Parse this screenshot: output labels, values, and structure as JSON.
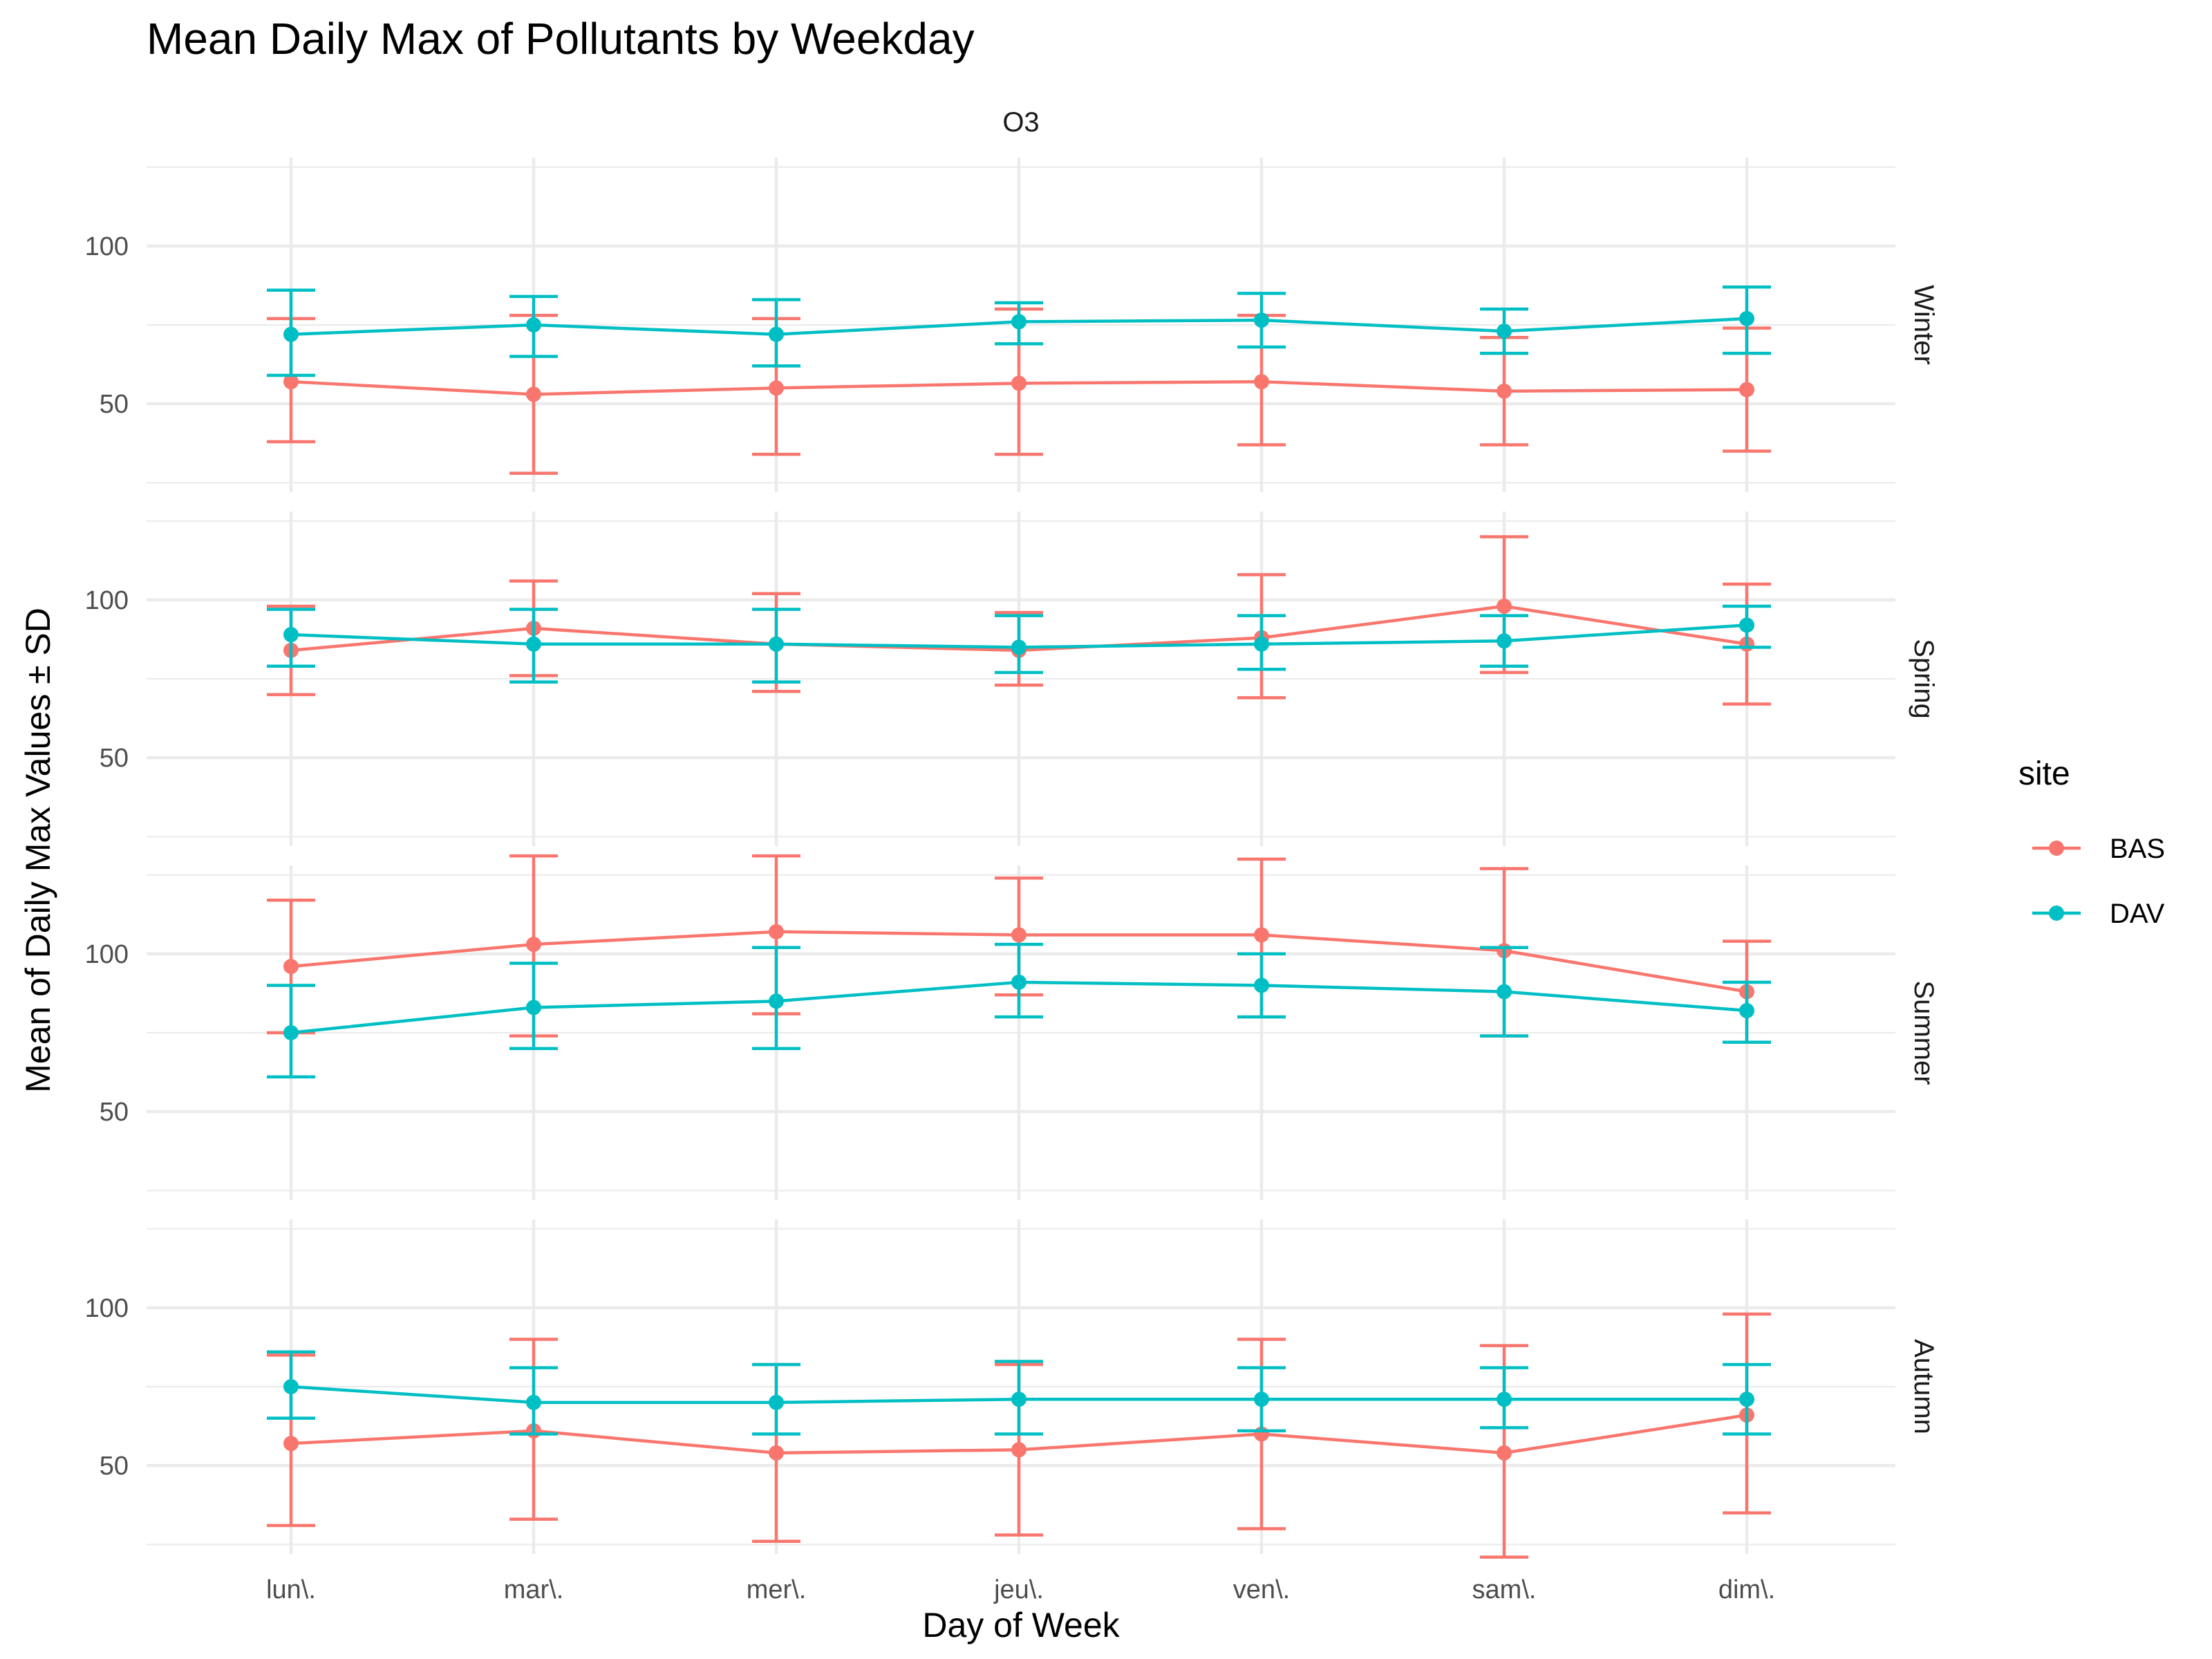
{
  "chart_data": {
    "type": "line",
    "title": "Mean Daily Max of Pollutants by Weekday",
    "xlabel": "Day of Week",
    "ylabel": "Mean of Daily Max Values ± SD",
    "facet_column": "O3",
    "facets": [
      "Winter",
      "Spring",
      "Summer",
      "Autumn"
    ],
    "categories": [
      "lun\\.",
      "mar\\.",
      "mer\\.",
      "jeu\\.",
      "ven\\.",
      "sam\\.",
      "dim\\."
    ],
    "ylim": [
      22,
      128
    ],
    "yticks": [
      50,
      100
    ],
    "grid": true,
    "legend": {
      "title": "site",
      "position": "right"
    },
    "series": [
      {
        "name": "BAS",
        "color": "#F8766D",
        "panels": {
          "Winter": {
            "mean": [
              57,
              53,
              55,
              56.5,
              57,
              54,
              54.5
            ],
            "lower": [
              38,
              28,
              34,
              34,
              37,
              37,
              35
            ],
            "upper": [
              77,
              78,
              77,
              80,
              78,
              71,
              74
            ]
          },
          "Spring": {
            "mean": [
              84,
              91,
              86,
              84,
              88,
              98,
              86
            ],
            "lower": [
              70,
              76,
              71,
              73,
              69,
              77,
              67
            ],
            "upper": [
              98,
              106,
              102,
              96,
              108,
              120,
              105
            ]
          },
          "Summer": {
            "mean": [
              96,
              103,
              107,
              106,
              106,
              101,
              88
            ],
            "lower": [
              75,
              74,
              81,
              87,
              80,
              74,
              72
            ],
            "upper": [
              117,
              131,
              131,
              124,
              130,
              127,
              104
            ]
          },
          "Autumn": {
            "mean": [
              57,
              61,
              54,
              55,
              60,
              54,
              66
            ],
            "lower": [
              31,
              33,
              26,
              28,
              30,
              21,
              35
            ],
            "upper": [
              85,
              90,
              82,
              82,
              90,
              88,
              98
            ]
          }
        }
      },
      {
        "name": "DAV",
        "color": "#00BFC4",
        "panels": {
          "Winter": {
            "mean": [
              72,
              75,
              72,
              76,
              76.5,
              73,
              77
            ],
            "lower": [
              59,
              65,
              62,
              69,
              68,
              66,
              66
            ],
            "upper": [
              86,
              84,
              83,
              82,
              85,
              80,
              87
            ]
          },
          "Spring": {
            "mean": [
              89,
              86,
              86,
              85,
              86,
              87,
              92
            ],
            "lower": [
              79,
              74,
              74,
              77,
              78,
              79,
              85
            ],
            "upper": [
              97,
              97,
              97,
              95,
              95,
              95,
              98
            ]
          },
          "Summer": {
            "mean": [
              75,
              83,
              85,
              91,
              90,
              88,
              82
            ],
            "lower": [
              61,
              70,
              70,
              80,
              80,
              74,
              72
            ],
            "upper": [
              90,
              97,
              102,
              103,
              100,
              102,
              91
            ]
          },
          "Autumn": {
            "mean": [
              75,
              70,
              70,
              71,
              71,
              71,
              71
            ],
            "lower": [
              65,
              60,
              60,
              60,
              61,
              62,
              60
            ],
            "upper": [
              86,
              81,
              82,
              83,
              81,
              81,
              82
            ]
          }
        }
      }
    ]
  }
}
